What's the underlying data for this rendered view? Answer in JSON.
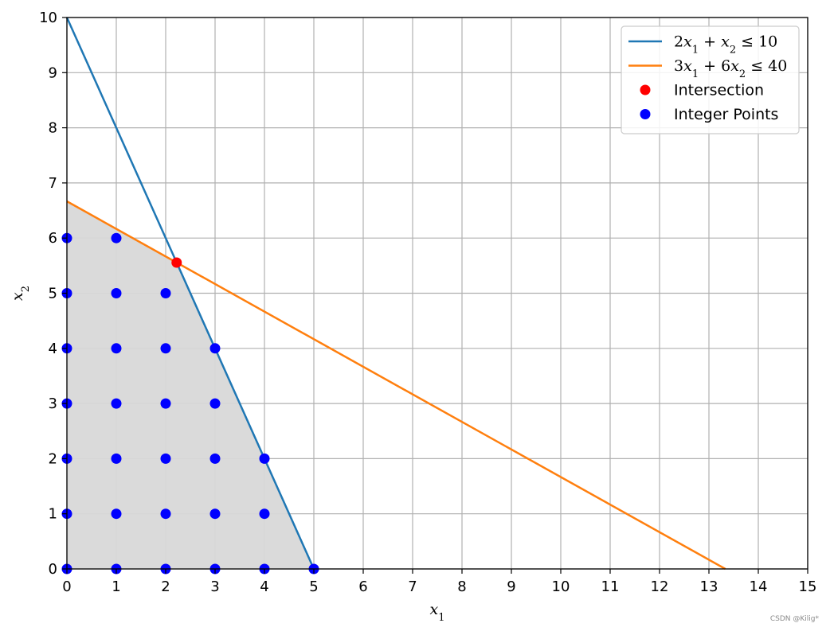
{
  "watermark": "CSDN @Kilig*",
  "chart_data": {
    "type": "line",
    "xlabel": "x1",
    "ylabel": "x2",
    "xlim": [
      0,
      15
    ],
    "ylim": [
      0,
      10
    ],
    "xticks": [
      0,
      1,
      2,
      3,
      4,
      5,
      6,
      7,
      8,
      9,
      10,
      11,
      12,
      13,
      14,
      15
    ],
    "yticks": [
      0,
      1,
      2,
      3,
      4,
      5,
      6,
      7,
      8,
      9,
      10
    ],
    "grid": true,
    "legend_position": "top-right",
    "series": [
      {
        "name": "2x1 + x2 ≤ 10",
        "type": "line",
        "color": "#1f77b4",
        "x": [
          0,
          5
        ],
        "y": [
          10,
          0
        ]
      },
      {
        "name": "3x1 + 6x2 ≤ 40",
        "type": "line",
        "color": "#ff7f0e",
        "x": [
          0,
          13.333
        ],
        "y": [
          6.667,
          0
        ]
      },
      {
        "name": "Intersection",
        "type": "scatter",
        "color": "#ff0000",
        "points": [
          [
            2.222,
            5.556
          ]
        ]
      },
      {
        "name": "Integer Points",
        "type": "scatter",
        "color": "#0000ff",
        "points": [
          [
            0,
            0
          ],
          [
            0,
            1
          ],
          [
            0,
            2
          ],
          [
            0,
            3
          ],
          [
            0,
            4
          ],
          [
            0,
            5
          ],
          [
            0,
            6
          ],
          [
            1,
            0
          ],
          [
            1,
            1
          ],
          [
            1,
            2
          ],
          [
            1,
            3
          ],
          [
            1,
            4
          ],
          [
            1,
            5
          ],
          [
            1,
            6
          ],
          [
            2,
            0
          ],
          [
            2,
            1
          ],
          [
            2,
            2
          ],
          [
            2,
            3
          ],
          [
            2,
            4
          ],
          [
            2,
            5
          ],
          [
            3,
            0
          ],
          [
            3,
            1
          ],
          [
            3,
            2
          ],
          [
            3,
            3
          ],
          [
            3,
            4
          ],
          [
            4,
            0
          ],
          [
            4,
            1
          ],
          [
            4,
            2
          ],
          [
            5,
            0
          ]
        ]
      }
    ],
    "feasible_region": {
      "fill_color": "#d8d8d8",
      "vertices": [
        [
          0,
          0
        ],
        [
          0,
          6.667
        ],
        [
          2.222,
          5.556
        ],
        [
          5,
          0
        ]
      ]
    }
  }
}
